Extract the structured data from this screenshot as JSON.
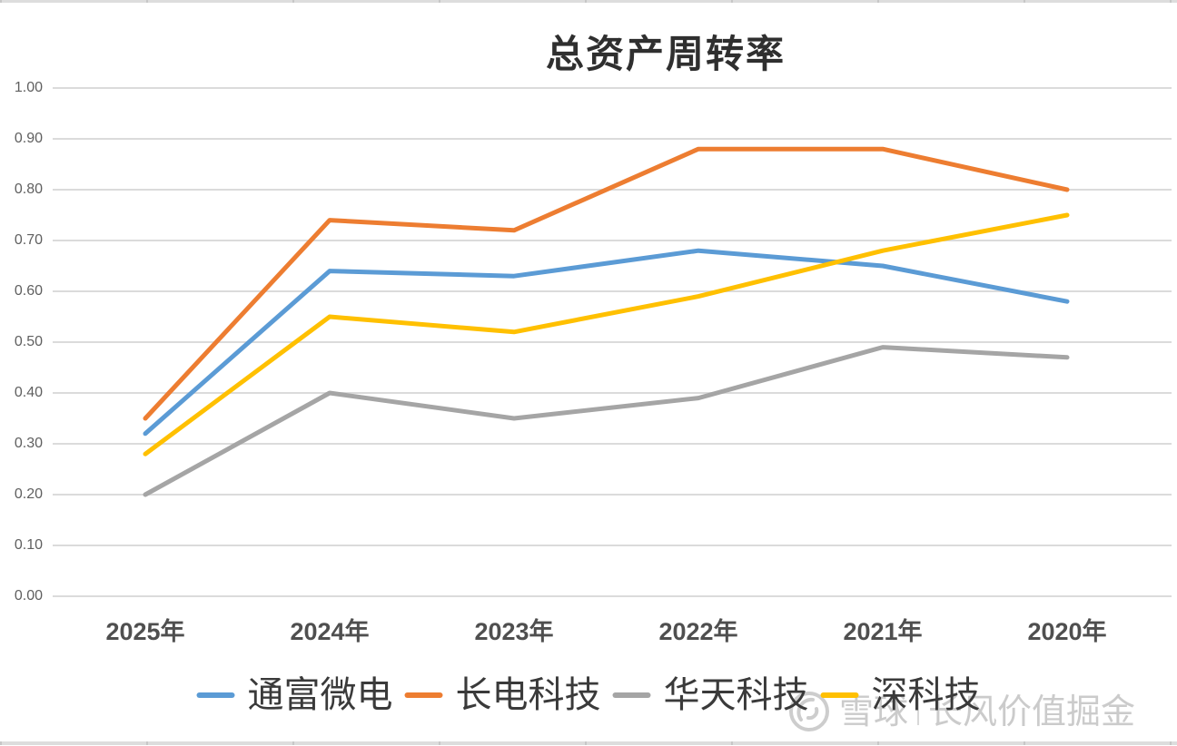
{
  "title": "总资产周转率",
  "chart_data": {
    "type": "line",
    "title": "总资产周转率",
    "categories": [
      "2025年",
      "2024年",
      "2023年",
      "2022年",
      "2021年",
      "2020年"
    ],
    "series": [
      {
        "name": "通富微电",
        "color": "#5B9BD5",
        "values": [
          0.32,
          0.64,
          0.63,
          0.68,
          0.65,
          0.58
        ]
      },
      {
        "name": "长电科技",
        "color": "#ED7D31",
        "values": [
          0.35,
          0.74,
          0.72,
          0.88,
          0.88,
          0.8
        ]
      },
      {
        "name": "华天科技",
        "color": "#A5A5A5",
        "values": [
          0.2,
          0.4,
          0.35,
          0.39,
          0.49,
          0.47
        ]
      },
      {
        "name": "深科技",
        "color": "#FFC000",
        "values": [
          0.28,
          0.55,
          0.52,
          0.59,
          0.68,
          0.75
        ]
      }
    ],
    "y_ticks": [
      "1.00",
      "0.90",
      "0.80",
      "0.70",
      "0.60",
      "0.50",
      "0.40",
      "0.30",
      "0.20",
      "0.10",
      "0.00"
    ],
    "ylim": [
      0.0,
      1.0
    ],
    "grid": true,
    "gridline_color": "#DBDBDB",
    "axis_text_color": "#5f5f5f",
    "line_width": 5,
    "legend_position": "bottom"
  },
  "watermark": {
    "logo": "xueqiu-snowball-logo",
    "brand": "雪球",
    "author": "长风价值掘金"
  }
}
